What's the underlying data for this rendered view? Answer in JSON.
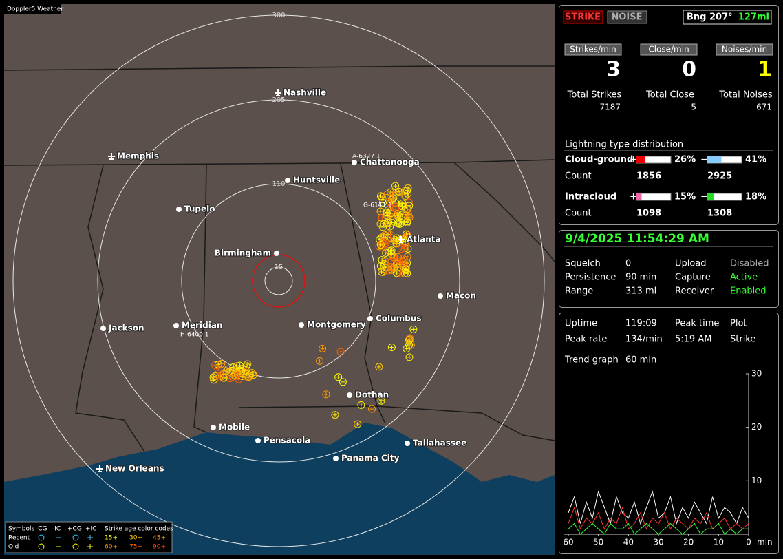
{
  "app_title": "Doppler5 Weather",
  "map": {
    "range_rings": [
      300,
      205,
      110,
      15
    ],
    "cities": [
      "Nashville",
      "Memphis",
      "Chattanooga",
      "Huntsville",
      "Tupelo",
      "Atlanta",
      "Birmingham",
      "Macon",
      "Jackson",
      "Meridian",
      "Montgomery",
      "Columbus",
      "Dothan",
      "Mobile",
      "Pensacola",
      "Tallahassee",
      "Panama City",
      "New Orleans"
    ],
    "storm_labels": [
      "A-6327 1",
      "G-6141 1",
      "H-6400 1"
    ],
    "legend": {
      "symbols_title": "Symbols",
      "types": [
        "-CG",
        "-IC",
        "+CG",
        "+IC"
      ],
      "age_title": "Strike age color codes",
      "rows": [
        "Recent",
        "Old"
      ],
      "ages": [
        [
          "15+",
          "30+",
          "45+"
        ],
        [
          "60+",
          "75+",
          "90+"
        ]
      ]
    }
  },
  "counters": {
    "modes": [
      "STRIKE",
      "NOISE"
    ],
    "bearing": "Bng 207°",
    "distance": "127mi",
    "rate_labels": [
      "Strikes/min",
      "Close/min",
      "Noises/min"
    ],
    "rates": [
      3,
      0,
      1
    ],
    "total_labels": [
      "Total Strikes",
      "Total Close",
      "Total Noises"
    ],
    "totals": [
      7187,
      5,
      671
    ]
  },
  "lightning": {
    "title": "Lightning type distribution",
    "signs": [
      "+",
      "−"
    ],
    "count_label": "Count",
    "rows": [
      {
        "label": "Cloud-ground",
        "plus": {
          "value": 26,
          "label": "26%"
        },
        "minus": {
          "value": 41,
          "label": "41%"
        },
        "counts": [
          1856,
          2925
        ]
      },
      {
        "label": "Intracloud",
        "plus": {
          "value": 15,
          "label": "15%"
        },
        "minus": {
          "value": 18,
          "label": "18%"
        },
        "counts": [
          1098,
          1308
        ]
      }
    ]
  },
  "status": {
    "datetime": "9/4/2025 11:54:29 AM",
    "rows": [
      [
        "Squelch",
        "0",
        "Upload",
        "Disabled"
      ],
      [
        "Persistence",
        "90 min",
        "Capture",
        "Active"
      ],
      [
        "Range",
        "313 mi",
        "Receiver",
        "Enabled"
      ]
    ]
  },
  "stats": {
    "rows": [
      [
        "Uptime",
        "119:09",
        "Peak time",
        "Plot"
      ],
      [
        "Peak rate",
        "134/min",
        "5:19 AM",
        "Strike"
      ]
    ],
    "trend_label": "Trend graph",
    "trend_span": "60 min"
  },
  "trend": {
    "ylim": [
      0,
      30
    ],
    "yticks": [
      10,
      20,
      30
    ],
    "xlim": [
      60,
      0
    ],
    "xticks": [
      60,
      50,
      40,
      30,
      20,
      10,
      0
    ],
    "x_unit": "min",
    "x": [
      60,
      58,
      56,
      54,
      52,
      50,
      48,
      46,
      44,
      42,
      40,
      38,
      36,
      34,
      32,
      30,
      28,
      26,
      24,
      22,
      20,
      18,
      16,
      14,
      12,
      10,
      8,
      6,
      4,
      2,
      0
    ],
    "series": [
      {
        "color": "#ffffff",
        "values": [
          4,
          7,
          2,
          6,
          3,
          8,
          5,
          2,
          7,
          4,
          3,
          6,
          2,
          5,
          8,
          3,
          4,
          7,
          2,
          5,
          3,
          6,
          4,
          2,
          7,
          3,
          5,
          4,
          2,
          5,
          3
        ]
      },
      {
        "color": "#ff3030",
        "values": [
          2,
          5,
          1,
          3,
          2,
          4,
          1,
          3,
          2,
          5,
          1,
          2,
          4,
          1,
          3,
          2,
          4,
          1,
          3,
          2,
          1,
          3,
          2,
          4,
          1,
          2,
          3,
          1,
          2,
          1,
          2
        ]
      },
      {
        "color": "#30ff30",
        "values": [
          1,
          2,
          0,
          1,
          2,
          1,
          0,
          2,
          1,
          1,
          2,
          0,
          1,
          2,
          1,
          0,
          1,
          2,
          1,
          0,
          1,
          2,
          0,
          1,
          1,
          2,
          0,
          1,
          0,
          1,
          1
        ]
      }
    ]
  }
}
